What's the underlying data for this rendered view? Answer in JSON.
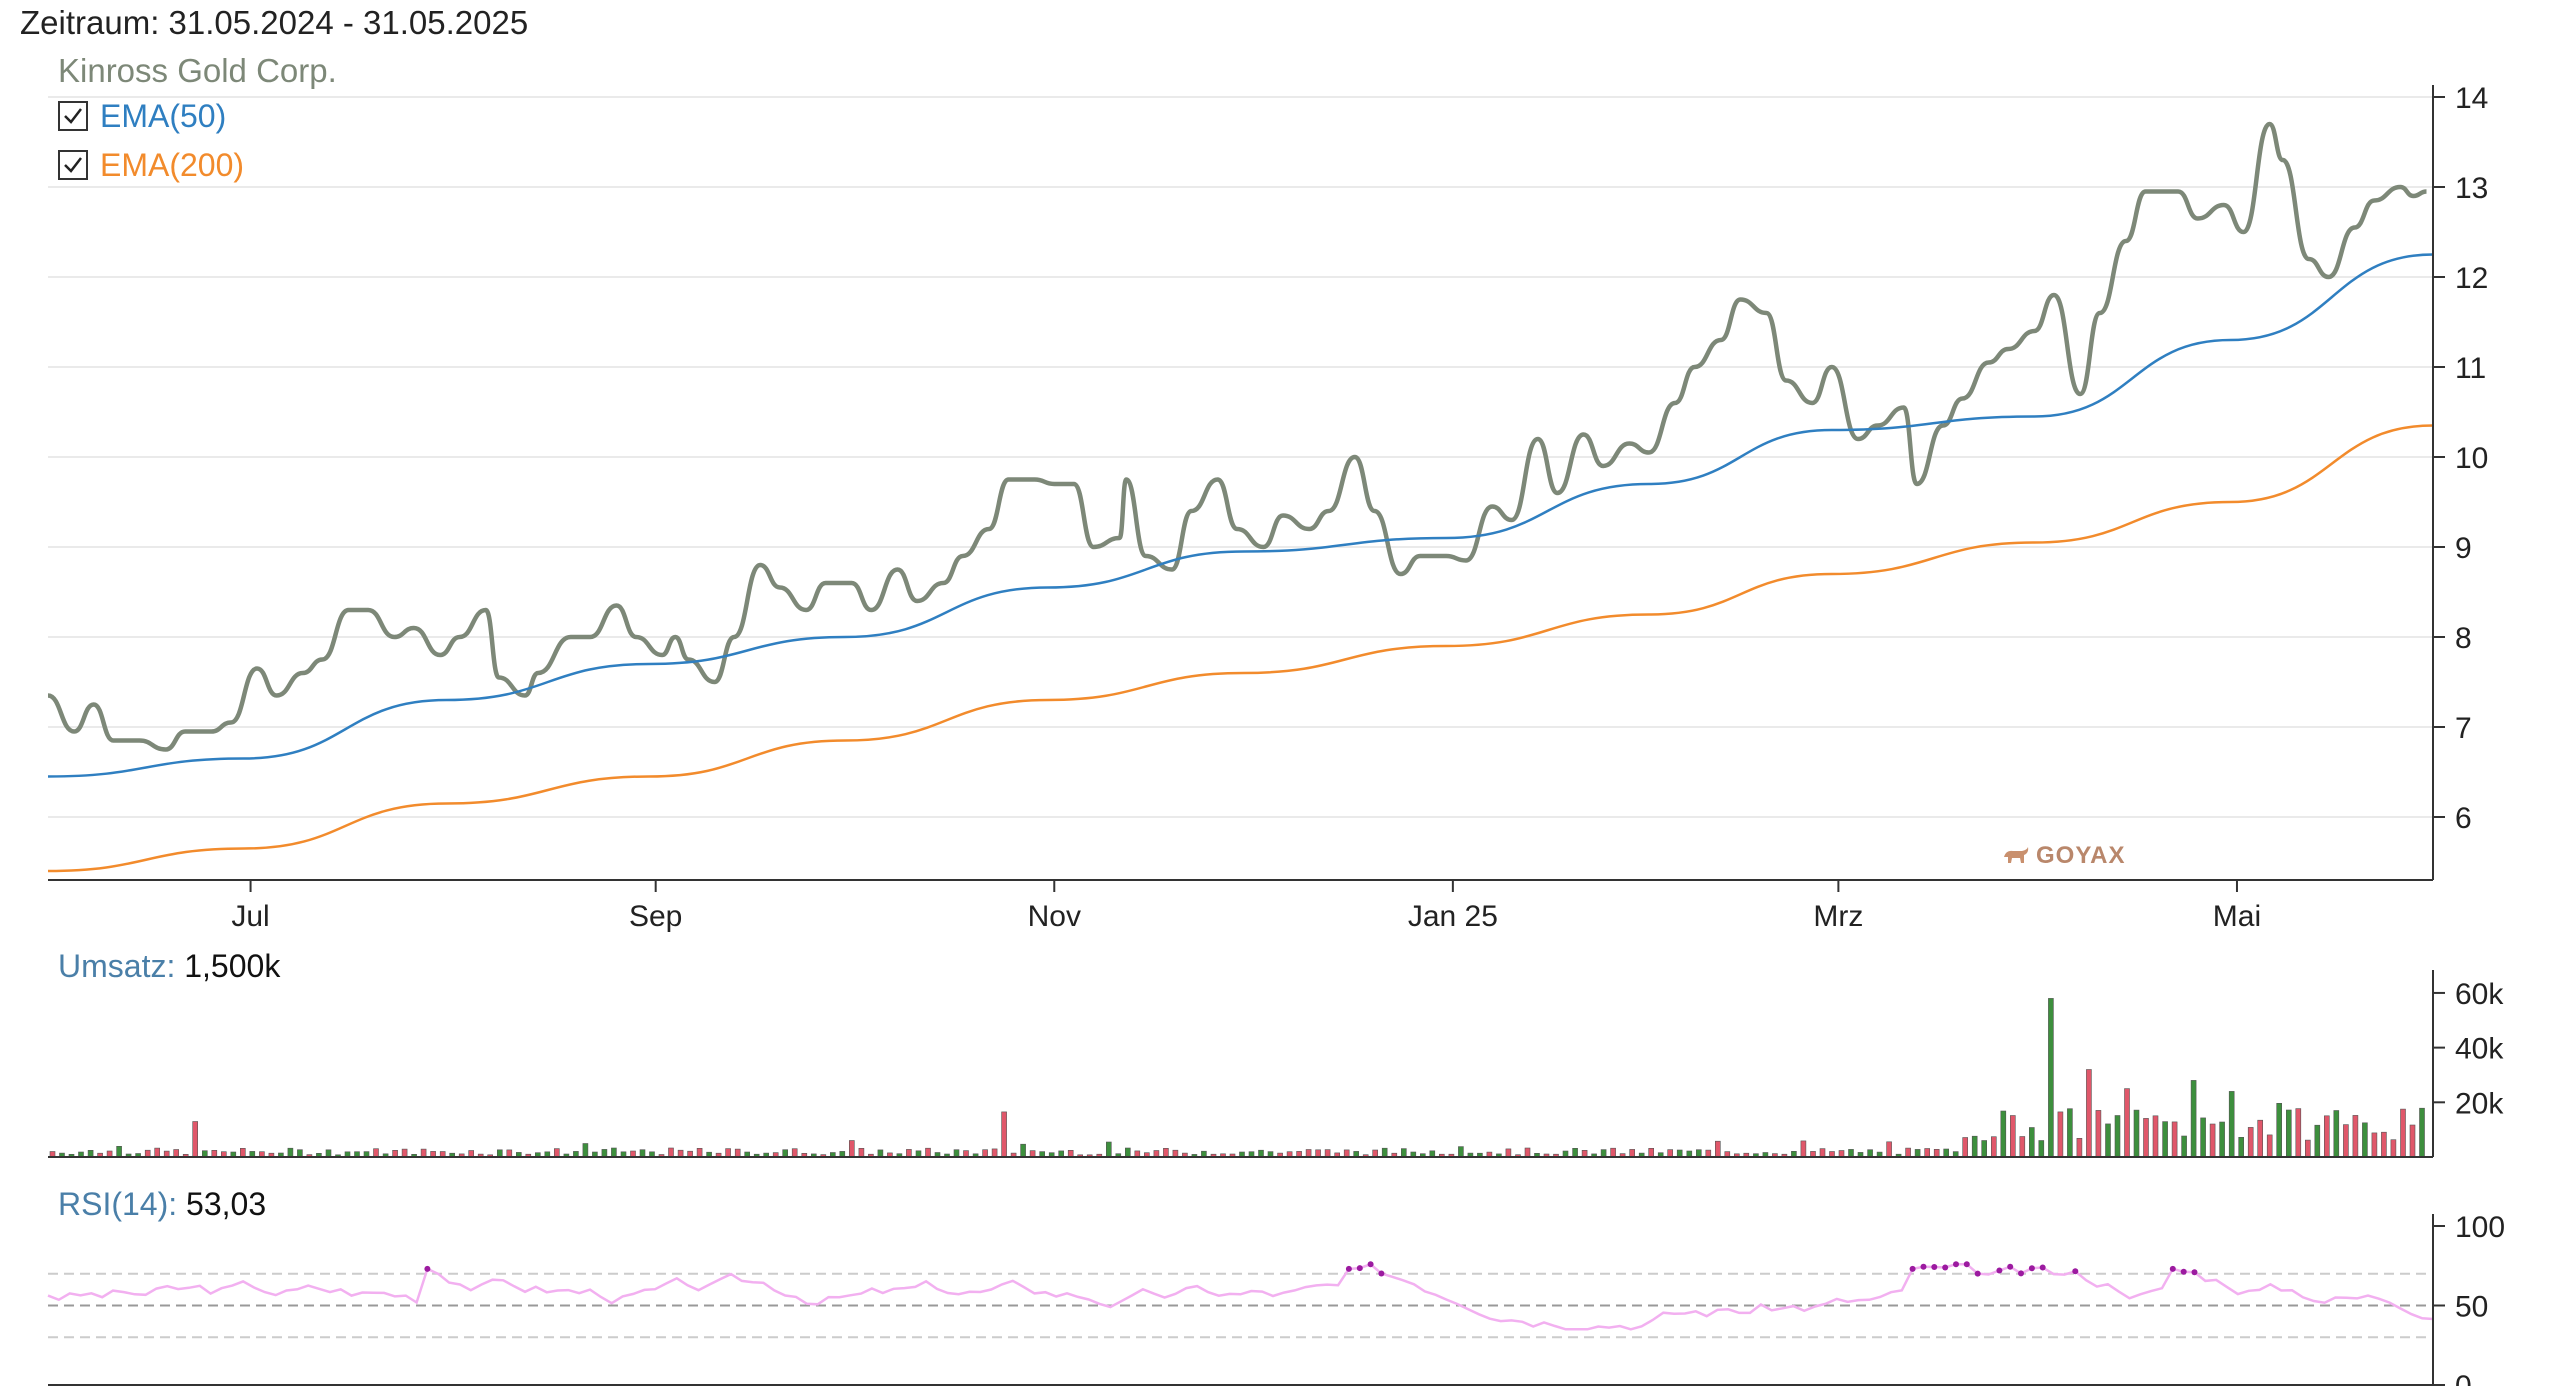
{
  "header": {
    "period_label": "Zeitraum:",
    "period_value": "31.05.2024 - 31.05.2025"
  },
  "price_panel": {
    "instrument": "Kinross Gold Corp.",
    "legend": [
      {
        "label": "EMA(50)",
        "checked": true,
        "color": "#2f7fc1"
      },
      {
        "label": "EMA(200)",
        "checked": true,
        "color": "#f28b2c"
      }
    ],
    "watermark": "GOYAX",
    "y_ticks": [
      "6",
      "7",
      "8",
      "9",
      "10",
      "11",
      "12",
      "13",
      "14"
    ],
    "x_ticks": [
      "Jul",
      "Sep",
      "Nov",
      "Jan 25",
      "Mrz",
      "Mai"
    ],
    "price_color": "#7d8878"
  },
  "volume_panel": {
    "label": "Umsatz:",
    "value": "1,500k",
    "y_ticks": [
      "20k",
      "40k",
      "60k"
    ],
    "up_color": "#3d8f3d",
    "down_color": "#e0576a"
  },
  "rsi_panel": {
    "label": "RSI(14):",
    "value": "53,03",
    "y_ticks": [
      "0",
      "50",
      "100"
    ],
    "color": "#f2b0f0",
    "overbought_color": "#9c1aa0"
  },
  "chart_data": {
    "type": "line",
    "title": "Kinross Gold Corp.",
    "x_range": [
      "2024-05-31",
      "2025-05-31"
    ],
    "ylim": [
      5.3,
      14.3
    ],
    "grid": true,
    "legend_position": "top-left",
    "series": [
      {
        "name": "Kinross Gold Corp.",
        "points": [
          [
            "2024-05-31",
            7.35
          ],
          [
            "2024-06-04",
            6.95
          ],
          [
            "2024-06-07",
            7.25
          ],
          [
            "2024-06-10",
            6.85
          ],
          [
            "2024-06-14",
            6.85
          ],
          [
            "2024-06-18",
            6.75
          ],
          [
            "2024-06-21",
            6.95
          ],
          [
            "2024-06-25",
            6.95
          ],
          [
            "2024-06-28",
            7.05
          ],
          [
            "2024-07-02",
            7.65
          ],
          [
            "2024-07-05",
            7.35
          ],
          [
            "2024-07-09",
            7.6
          ],
          [
            "2024-07-12",
            7.75
          ],
          [
            "2024-07-16",
            8.3
          ],
          [
            "2024-07-19",
            8.3
          ],
          [
            "2024-07-23",
            8.0
          ],
          [
            "2024-07-26",
            8.1
          ],
          [
            "2024-07-30",
            7.8
          ],
          [
            "2024-08-02",
            8.0
          ],
          [
            "2024-08-06",
            8.3
          ],
          [
            "2024-08-08",
            7.55
          ],
          [
            "2024-08-12",
            7.35
          ],
          [
            "2024-08-14",
            7.6
          ],
          [
            "2024-08-19",
            8.0
          ],
          [
            "2024-08-22",
            8.0
          ],
          [
            "2024-08-26",
            8.35
          ],
          [
            "2024-08-29",
            8.0
          ],
          [
            "2024-09-02",
            7.8
          ],
          [
            "2024-09-04",
            8.0
          ],
          [
            "2024-09-06",
            7.75
          ],
          [
            "2024-09-10",
            7.5
          ],
          [
            "2024-09-13",
            8.0
          ],
          [
            "2024-09-17",
            8.8
          ],
          [
            "2024-09-20",
            8.55
          ],
          [
            "2024-09-24",
            8.3
          ],
          [
            "2024-09-27",
            8.6
          ],
          [
            "2024-10-01",
            8.6
          ],
          [
            "2024-10-04",
            8.3
          ],
          [
            "2024-10-08",
            8.75
          ],
          [
            "2024-10-11",
            8.4
          ],
          [
            "2024-10-15",
            8.6
          ],
          [
            "2024-10-18",
            8.9
          ],
          [
            "2024-10-22",
            9.2
          ],
          [
            "2024-10-25",
            9.75
          ],
          [
            "2024-10-29",
            9.75
          ],
          [
            "2024-11-01",
            9.7
          ],
          [
            "2024-11-04",
            9.7
          ],
          [
            "2024-11-07",
            9.0
          ],
          [
            "2024-11-11",
            9.1
          ],
          [
            "2024-11-12",
            9.75
          ],
          [
            "2024-11-15",
            8.9
          ],
          [
            "2024-11-19",
            8.75
          ],
          [
            "2024-11-22",
            9.4
          ],
          [
            "2024-11-26",
            9.75
          ],
          [
            "2024-11-29",
            9.2
          ],
          [
            "2024-12-03",
            9.0
          ],
          [
            "2024-12-06",
            9.35
          ],
          [
            "2024-12-10",
            9.2
          ],
          [
            "2024-12-13",
            9.4
          ],
          [
            "2024-12-17",
            10.0
          ],
          [
            "2024-12-20",
            9.4
          ],
          [
            "2024-12-24",
            8.7
          ],
          [
            "2024-12-27",
            8.9
          ],
          [
            "2024-12-31",
            8.9
          ],
          [
            "2025-01-03",
            8.85
          ],
          [
            "2025-01-07",
            9.45
          ],
          [
            "2025-01-10",
            9.3
          ],
          [
            "2025-01-14",
            10.2
          ],
          [
            "2025-01-17",
            9.6
          ],
          [
            "2025-01-21",
            10.25
          ],
          [
            "2025-01-24",
            9.9
          ],
          [
            "2025-01-28",
            10.15
          ],
          [
            "2025-01-31",
            10.05
          ],
          [
            "2025-02-04",
            10.6
          ],
          [
            "2025-02-07",
            11.0
          ],
          [
            "2025-02-11",
            11.3
          ],
          [
            "2025-02-14",
            11.75
          ],
          [
            "2025-02-18",
            11.6
          ],
          [
            "2025-02-21",
            10.85
          ],
          [
            "2025-02-25",
            10.6
          ],
          [
            "2025-02-28",
            11.0
          ],
          [
            "2025-03-04",
            10.2
          ],
          [
            "2025-03-07",
            10.35
          ],
          [
            "2025-03-11",
            10.55
          ],
          [
            "2025-03-13",
            9.7
          ],
          [
            "2025-03-17",
            10.35
          ],
          [
            "2025-03-20",
            10.65
          ],
          [
            "2025-03-24",
            11.05
          ],
          [
            "2025-03-27",
            11.2
          ],
          [
            "2025-03-31",
            11.4
          ],
          [
            "2025-04-03",
            11.8
          ],
          [
            "2025-04-07",
            10.7
          ],
          [
            "2025-04-10",
            11.6
          ],
          [
            "2025-04-14",
            12.4
          ],
          [
            "2025-04-17",
            12.95
          ],
          [
            "2025-04-22",
            12.95
          ],
          [
            "2025-04-25",
            12.65
          ],
          [
            "2025-04-29",
            12.8
          ],
          [
            "2025-05-02",
            12.5
          ],
          [
            "2025-05-06",
            13.7
          ],
          [
            "2025-05-08",
            13.3
          ],
          [
            "2025-05-12",
            12.2
          ],
          [
            "2025-05-15",
            12.0
          ],
          [
            "2025-05-19",
            12.55
          ],
          [
            "2025-05-22",
            12.85
          ],
          [
            "2025-05-26",
            13.0
          ],
          [
            "2025-05-28",
            12.9
          ],
          [
            "2025-05-30",
            12.95
          ]
        ]
      },
      {
        "name": "EMA(50)",
        "points": [
          [
            "2024-05-31",
            6.45
          ],
          [
            "2024-06-30",
            6.65
          ],
          [
            "2024-07-31",
            7.3
          ],
          [
            "2024-08-31",
            7.7
          ],
          [
            "2024-09-30",
            8.0
          ],
          [
            "2024-10-31",
            8.55
          ],
          [
            "2024-11-30",
            8.95
          ],
          [
            "2024-12-31",
            9.1
          ],
          [
            "2025-01-31",
            9.7
          ],
          [
            "2025-02-28",
            10.3
          ],
          [
            "2025-03-31",
            10.45
          ],
          [
            "2025-04-30",
            11.3
          ],
          [
            "2025-05-31",
            12.25
          ]
        ]
      },
      {
        "name": "EMA(200)",
        "points": [
          [
            "2024-05-31",
            5.4
          ],
          [
            "2024-06-30",
            5.65
          ],
          [
            "2024-07-31",
            6.15
          ],
          [
            "2024-08-31",
            6.45
          ],
          [
            "2024-09-30",
            6.85
          ],
          [
            "2024-10-31",
            7.3
          ],
          [
            "2024-11-30",
            7.6
          ],
          [
            "2024-12-31",
            7.9
          ],
          [
            "2025-01-31",
            8.25
          ],
          [
            "2025-02-28",
            8.7
          ],
          [
            "2025-03-31",
            9.05
          ],
          [
            "2025-04-30",
            9.5
          ],
          [
            "2025-05-31",
            10.35
          ]
        ]
      }
    ]
  }
}
